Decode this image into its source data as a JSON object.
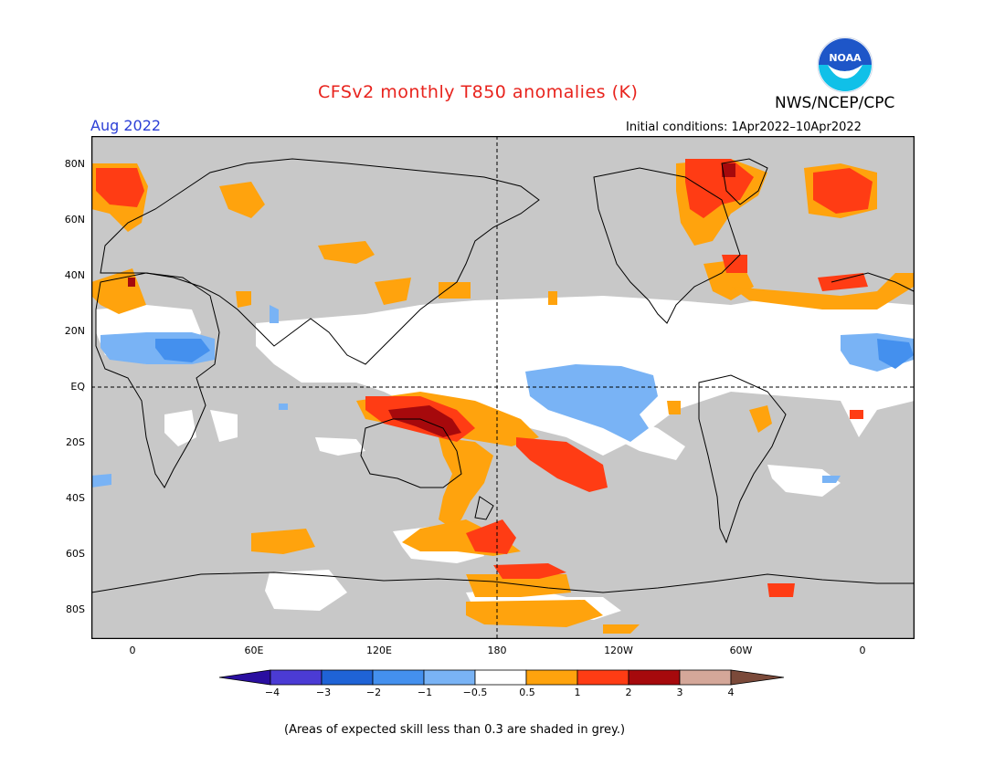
{
  "title": "CFSv2 monthly T850 anomalies (K)",
  "org": "NWS/NCEP/CPC",
  "month": "Aug 2022",
  "initial_conditions": "Initial conditions: 1Apr2022–10Apr2022",
  "note": "(Areas of expected skill less than 0.3 are shaded in grey.)",
  "logo_text": "NOAA",
  "lat_labels": [
    "80N",
    "60N",
    "40N",
    "20N",
    "EQ",
    "20S",
    "40S",
    "60S",
    "80S"
  ],
  "lon_labels": [
    "0",
    "60E",
    "120E",
    "180",
    "120W",
    "60W",
    "0"
  ],
  "colorbar": {
    "labels": [
      "−4",
      "−3",
      "−2",
      "−1",
      "−0.5",
      "0.5",
      "1",
      "2",
      "3",
      "4"
    ],
    "colors": [
      "#2a0fa0",
      "#4b3bd4",
      "#1f63d6",
      "#4490ee",
      "#79b3f5",
      "#ffffff",
      "#ffa30d",
      "#ff3c14",
      "#a6090c",
      "#d4a799",
      "#7b4a3a"
    ]
  },
  "colors": {
    "skill_mask": "#c8c8c8",
    "ocean_white": "#ffffff",
    "title": "#e8231d",
    "month": "#2c3fd6",
    "noaa_blue": "#1e56c8",
    "noaa_cyan": "#10c0e8"
  }
}
